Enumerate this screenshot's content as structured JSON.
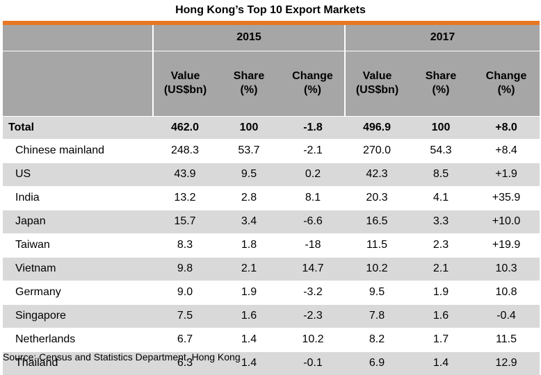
{
  "title": "Hong Kong’s Top 10 Export Markets",
  "years": [
    "2015",
    "2017"
  ],
  "columns": {
    "value": [
      "Value",
      "(US$bn)"
    ],
    "share": [
      "Share",
      "(%)"
    ],
    "change": [
      "Change",
      "(%)"
    ]
  },
  "total": {
    "label": "Total",
    "v2015": "462.0",
    "s2015": "100",
    "c2015": "-1.8",
    "v2017": "496.9",
    "s2017": "100",
    "c2017": "+8.0"
  },
  "rows": [
    {
      "label": "Chinese mainland",
      "v2015": "248.3",
      "s2015": "53.7",
      "c2015": "-2.1",
      "v2017": "270.0",
      "s2017": "54.3",
      "c2017": "+8.4"
    },
    {
      "label": "US",
      "v2015": "43.9",
      "s2015": "9.5",
      "c2015": "0.2",
      "v2017": "42.3",
      "s2017": "8.5",
      "c2017": "+1.9"
    },
    {
      "label": "India",
      "v2015": "13.2",
      "s2015": "2.8",
      "c2015": "8.1",
      "v2017": "20.3",
      "s2017": "4.1",
      "c2017": "+35.9"
    },
    {
      "label": "Japan",
      "v2015": "15.7",
      "s2015": "3.4",
      "c2015": "-6.6",
      "v2017": "16.5",
      "s2017": "3.3",
      "c2017": "+10.0"
    },
    {
      "label": "Taiwan",
      "v2015": "8.3",
      "s2015": "1.8",
      "c2015": "-18",
      "v2017": "11.5",
      "s2017": "2.3",
      "c2017": "+19.9"
    },
    {
      "label": "Vietnam",
      "v2015": "9.8",
      "s2015": "2.1",
      "c2015": "14.7",
      "v2017": "10.2",
      "s2017": "2.1",
      "c2017": "10.3"
    },
    {
      "label": "Germany",
      "v2015": "9.0",
      "s2015": "1.9",
      "c2015": "-3.2",
      "v2017": "9.5",
      "s2017": "1.9",
      "c2017": "10.8"
    },
    {
      "label": "Singapore",
      "v2015": "7.5",
      "s2015": "1.6",
      "c2015": "-2.3",
      "v2017": "7.8",
      "s2017": "1.6",
      "c2017": "-0.4"
    },
    {
      "label": "Netherlands",
      "v2015": "6.7",
      "s2015": "1.4",
      "c2015": "10.2",
      "v2017": "8.2",
      "s2017": "1.7",
      "c2017": "11.5"
    },
    {
      "label": "Thailand",
      "v2015": "6.3",
      "s2015": "1.4",
      "c2015": "-0.1",
      "v2017": "6.9",
      "s2017": "1.4",
      "c2017": "12.9"
    }
  ],
  "source": "Source: Census and Statistics Department, Hong Kong",
  "colors": {
    "accent": "#e87722",
    "header": "#a6a6a6",
    "shade": "#d9d9d9"
  }
}
